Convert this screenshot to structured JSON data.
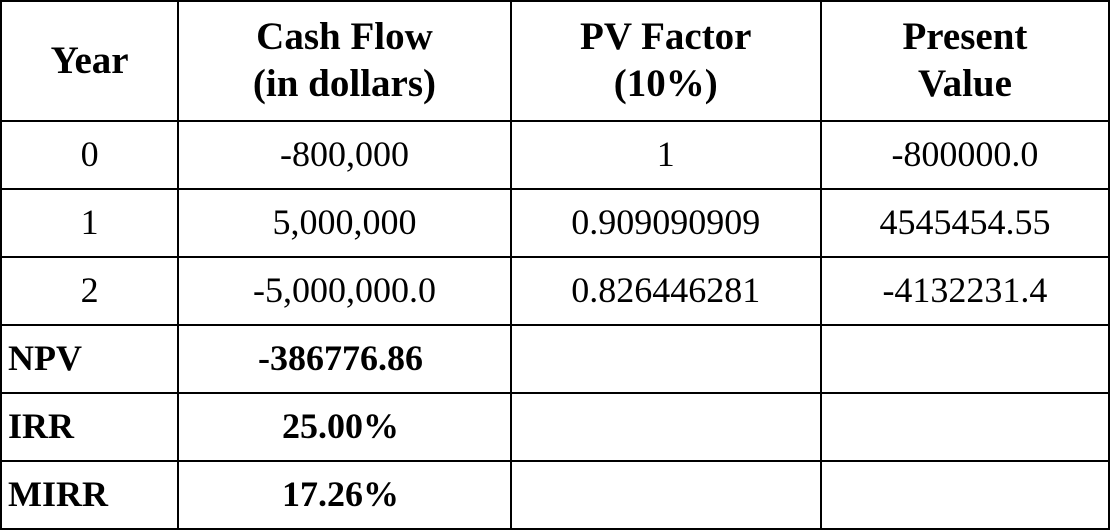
{
  "table": {
    "type": "table",
    "background_color": "#ffffff",
    "border_color": "#000000",
    "font_family": "Times New Roman",
    "header_fontsize": 39,
    "cell_fontsize": 36,
    "column_widths_pct": [
      16,
      30,
      28,
      26
    ],
    "columns": [
      {
        "label_line1": "Year",
        "label_line2": ""
      },
      {
        "label_line1": "Cash Flow",
        "label_line2": "(in dollars)"
      },
      {
        "label_line1": "PV Factor",
        "label_line2": "(10%)"
      },
      {
        "label_line1": "Present",
        "label_line2": "Value"
      }
    ],
    "rows": [
      {
        "year": "0",
        "cash_flow": "-800,000",
        "pv_factor": "1",
        "present_value": "-800000.0"
      },
      {
        "year": "1",
        "cash_flow": "5,000,000",
        "pv_factor": "0.909090909",
        "present_value": "4545454.55"
      },
      {
        "year": "2",
        "cash_flow": "-5,000,000.0",
        "pv_factor": "0.826446281",
        "present_value": "-4132231.4"
      }
    ],
    "summary": [
      {
        "label": "NPV",
        "value": "-386776.86"
      },
      {
        "label": "IRR",
        "value": "25.00%"
      },
      {
        "label": "MIRR",
        "value": "17.26%"
      }
    ]
  }
}
